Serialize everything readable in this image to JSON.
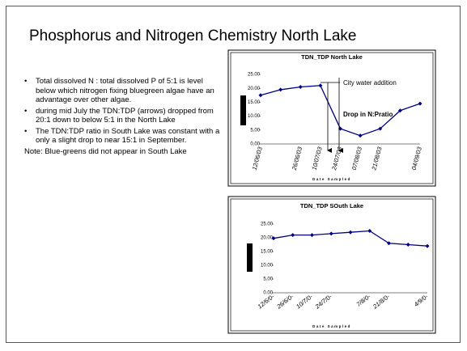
{
  "title": "Phosphorus and Nitrogen Chemistry North Lake",
  "bullets": [
    "Total dissolved N : total dissolved P of 5:1 is level below which nitrogen fixing bluegreen algae have an advantage over other algae.",
    "during mid July the TDN:TDP (arrows) dropped from 20:1 down to below 5:1 in the North Lake",
    "The TDN:TDP ratio in South Lake was constant with a only a slight drop to near 15:1 in September."
  ],
  "note": "Note: Blue-greens did not appear in South Lake",
  "chart_data": [
    {
      "type": "line",
      "title": "TDN_TDP North Lake",
      "x_label": "Date Sampled",
      "categories": [
        "12/06/03",
        null,
        "26/06/03",
        "10/07/03",
        "24/07/03",
        "07/08/03",
        "21/08/03",
        null,
        "04/09/03"
      ],
      "series": [
        {
          "color": "#000080",
          "values": [
            17.5,
            19.5,
            20.5,
            21,
            5.5,
            3,
            5.5,
            12,
            14.5
          ]
        }
      ],
      "ylim": [
        0,
        25
      ],
      "yticks": [
        {
          "value": 0,
          "label": "0.00"
        },
        {
          "value": 5,
          "label": "5.00"
        },
        {
          "value": 10,
          "label": "10.00"
        },
        {
          "value": 15,
          "label": "15.00"
        },
        {
          "value": 20,
          "label": "20.00"
        },
        {
          "value": 25,
          "label": "25.00"
        }
      ],
      "annotations": [
        "City water addition",
        "Drop in N:Pratio"
      ]
    },
    {
      "type": "line",
      "title": "TDN_TDP SOuth Lake",
      "x_label": "Date Sampled",
      "categories": [
        "12/6/0-",
        "26/6/0-",
        "10/7/0-",
        "24/7/0-",
        null,
        "7/8/0-",
        "21/8/0-",
        null,
        "4/9/0-"
      ],
      "series": [
        {
          "color": "#000080",
          "values": [
            19.8,
            21,
            21,
            21.5,
            22,
            22.5,
            18,
            17.5,
            17
          ]
        }
      ],
      "ylim": [
        0,
        25
      ],
      "yticks": [
        {
          "value": 0,
          "label": "0.00"
        },
        {
          "value": 5,
          "label": "5.00"
        },
        {
          "value": 10,
          "label": "10.00"
        },
        {
          "value": 15,
          "label": "15.00"
        },
        {
          "value": 20,
          "label": "20.00"
        },
        {
          "value": 25,
          "label": "25.00"
        }
      ]
    }
  ]
}
